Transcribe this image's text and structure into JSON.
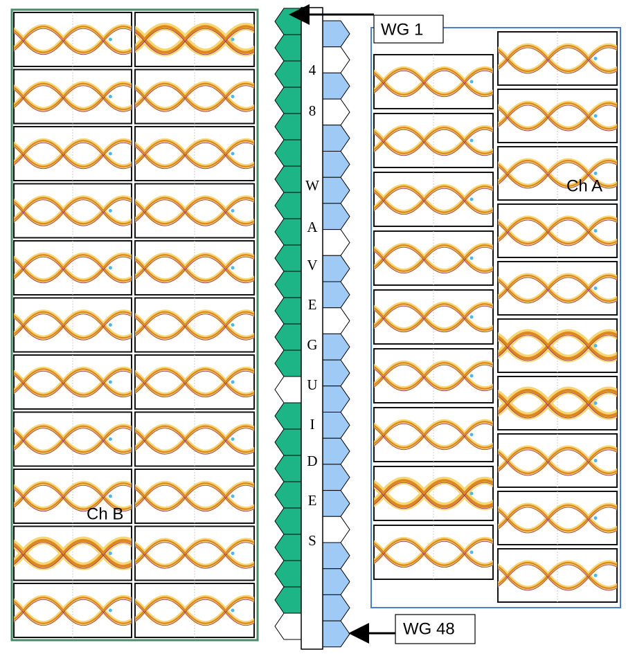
{
  "labels": {
    "wg_first": "WG 1",
    "wg_last": "WG 48",
    "channel_a": "Ch A",
    "channel_b": "Ch B"
  },
  "waveguide_label": [
    "4",
    "8",
    "W",
    "A",
    "V",
    "E",
    "G",
    "U",
    "I",
    "D",
    "E",
    "S"
  ]
}
